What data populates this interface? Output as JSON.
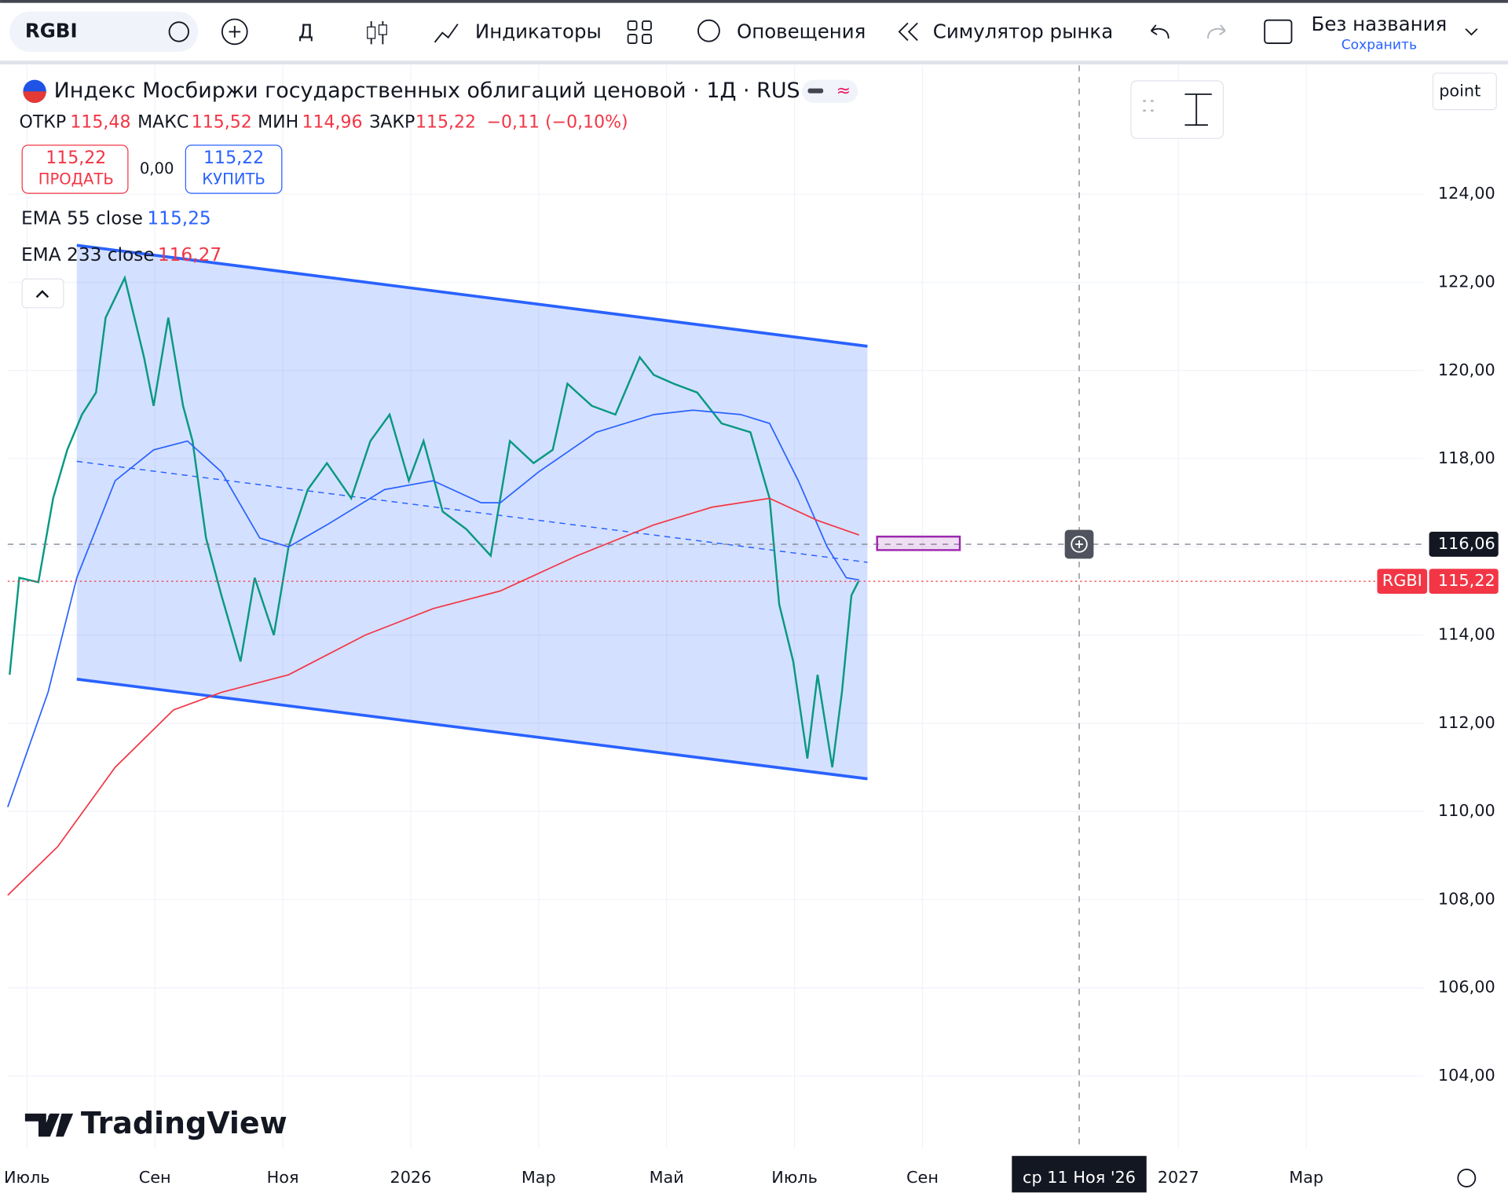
{
  "toolbar": {
    "symbol": "RGBI",
    "interval": "Д",
    "indicators": "Индикаторы",
    "alerts": "Оповещения",
    "replay": "Симулятор рынка",
    "layout_name": "Без названия",
    "save": "Сохранить"
  },
  "legend": {
    "title": "Индекс Мосбиржи государственных облигаций ценовой · 1Д · RUS",
    "open_label": "ОТКР",
    "open": "115,48",
    "high_label": "МАКС",
    "high": "115,52",
    "low_label": "МИН",
    "low": "114,96",
    "close_label": "ЗАКР",
    "close": "115,22",
    "change": "−0,11 (−0,10%)",
    "sell_price": "115,22",
    "sell": "ПРОДАТЬ",
    "spread": "0,00",
    "buy_price": "115,22",
    "buy": "КУПИТЬ"
  },
  "scale_mode": "point",
  "watermark": "TradingView",
  "chart_data": {
    "type": "line",
    "xlim": [
      -0.3,
      21.83
    ],
    "ylim": [
      102.34,
      126.92
    ],
    "xticks": [
      {
        "value": 0,
        "label": "Июль"
      },
      {
        "value": 2,
        "label": "Сен"
      },
      {
        "value": 4,
        "label": "Ноя"
      },
      {
        "value": 6,
        "label": "2026"
      },
      {
        "value": 8,
        "label": "Мар"
      },
      {
        "value": 10,
        "label": "Май"
      },
      {
        "value": 12,
        "label": "Июль"
      },
      {
        "value": 14,
        "label": "Сен"
      },
      {
        "value": 18,
        "label": "2027"
      },
      {
        "value": 20,
        "label": "Мар"
      }
    ],
    "yticks": [
      {
        "value": 124,
        "label": "124,00"
      },
      {
        "value": 122,
        "label": "122,00"
      },
      {
        "value": 120,
        "label": "120,00"
      },
      {
        "value": 118,
        "label": "118,00"
      },
      {
        "value": 116,
        "label": "116,00"
      },
      {
        "value": 114,
        "label": "114,00"
      },
      {
        "value": 112,
        "label": "112,00"
      },
      {
        "value": 110,
        "label": "110,00"
      },
      {
        "value": 108,
        "label": "108,00"
      },
      {
        "value": 106,
        "label": "106,00"
      },
      {
        "value": 104,
        "label": "104,00"
      }
    ],
    "grid": true,
    "series": [
      {
        "name": "RGBI",
        "color": "#089981",
        "x": [
          -0.27,
          -0.12,
          0.18,
          0.41,
          0.63,
          0.86,
          1.08,
          1.23,
          1.53,
          1.83,
          1.98,
          2.21,
          2.44,
          2.59,
          2.8,
          3.04,
          3.34,
          3.56,
          3.86,
          4.09,
          4.39,
          4.69,
          5.07,
          5.37,
          5.67,
          5.97,
          6.2,
          6.5,
          6.87,
          7.25,
          7.55,
          7.92,
          8.22,
          8.45,
          8.83,
          9.2,
          9.58,
          9.8,
          10.11,
          10.48,
          10.86,
          11.31,
          11.61,
          11.76,
          11.98,
          12.2,
          12.36,
          12.59,
          12.74,
          12.89,
          13.0
        ],
        "values": [
          113.1,
          115.3,
          115.2,
          117.1,
          118.2,
          119.0,
          119.5,
          121.2,
          122.1,
          120.3,
          119.2,
          121.2,
          119.2,
          118.4,
          116.2,
          114.9,
          113.4,
          115.3,
          114.0,
          116.0,
          117.3,
          117.9,
          117.1,
          118.4,
          119.0,
          117.5,
          118.4,
          116.8,
          116.4,
          115.8,
          118.4,
          117.9,
          118.2,
          119.7,
          119.2,
          119.0,
          120.3,
          119.9,
          119.7,
          119.5,
          118.8,
          118.6,
          117.1,
          114.7,
          113.4,
          111.2,
          113.1,
          111.0,
          112.7,
          114.9,
          115.22
        ],
        "last": {
          "value": 115.22,
          "label": "115,22"
        }
      },
      {
        "name": "EMA 55 close",
        "color": "#2962ff",
        "last_label": "115,25",
        "x": [
          -0.3,
          0.33,
          0.78,
          1.38,
          1.98,
          2.51,
          3.04,
          3.64,
          4.09,
          4.69,
          5.59,
          6.35,
          7.1,
          7.4,
          8.0,
          8.9,
          9.8,
          10.41,
          11.16,
          11.61,
          12.06,
          12.51,
          12.81,
          13.01
        ],
        "values": [
          110.1,
          112.7,
          115.3,
          117.5,
          118.2,
          118.4,
          117.7,
          116.2,
          116.0,
          116.5,
          117.3,
          117.5,
          117.0,
          117.0,
          117.7,
          118.6,
          119.0,
          119.1,
          119.0,
          118.8,
          117.5,
          116.0,
          115.3,
          115.25
        ]
      },
      {
        "name": "EMA 233 close",
        "color": "#f23645",
        "last_label": "116,27",
        "x": [
          -0.3,
          0.48,
          1.38,
          2.29,
          3.04,
          4.09,
          5.29,
          6.35,
          7.4,
          8.6,
          9.8,
          10.71,
          11.61,
          12.36,
          13.01
        ],
        "values": [
          108.1,
          109.2,
          111.0,
          112.3,
          112.7,
          113.1,
          114.0,
          114.6,
          115.0,
          115.8,
          116.5,
          116.9,
          117.1,
          116.6,
          116.27
        ]
      }
    ],
    "channel": {
      "color": "#2962ff",
      "x": [
        0.78,
        13.14
      ],
      "upper": [
        122.84,
        120.55
      ],
      "middle": [
        117.94,
        115.65
      ],
      "lower": [
        113.0,
        110.74
      ]
    },
    "crosshair": {
      "x": 16.45,
      "x_label": "ср 11 Ноя '26",
      "y": {
        "value": 116.06,
        "label": "116,06"
      }
    }
  }
}
